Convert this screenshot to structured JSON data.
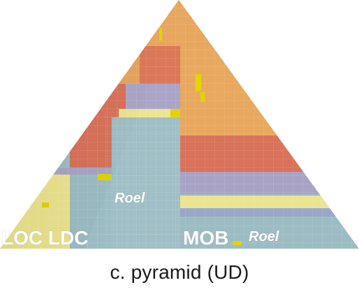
{
  "colors": {
    "background": "#ffffff",
    "orange": "#e7a75e",
    "red": "#d9725a",
    "lavender": "#a8a3c5",
    "light_yellow": "#ece48e",
    "teal": "#9cbcc3",
    "yellow_highlight": "#e2d400",
    "label_text": "#ffffff"
  },
  "labels": {
    "left_group": "LOC LDC",
    "right_group": "MOB",
    "left_author": "Roel",
    "right_author": "Roel"
  },
  "caption": "c. pyramid (UD)"
}
